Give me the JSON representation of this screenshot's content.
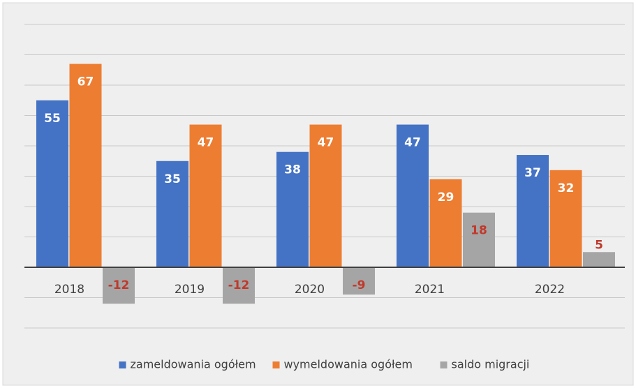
{
  "chart_data": {
    "type": "bar",
    "categories": [
      "2018",
      "2019",
      "2020",
      "2021",
      "2022"
    ],
    "series": [
      {
        "name": "zameldowania ogółem",
        "color": "#4472c4",
        "label_color": "#ffffff",
        "values": [
          55,
          35,
          38,
          47,
          37
        ]
      },
      {
        "name": "wymeldowania ogółem",
        "color": "#ed7d31",
        "label_color": "#ffffff",
        "values": [
          67,
          47,
          47,
          29,
          32
        ]
      },
      {
        "name": "saldo migracji",
        "color": "#a5a5a5",
        "label_color": "#c0392b",
        "values": [
          -12,
          -12,
          -9,
          18,
          5
        ]
      }
    ],
    "ylim": [
      -20,
      80
    ],
    "yticks": [
      -20,
      -10,
      0,
      10,
      20,
      30,
      40,
      50,
      60,
      70,
      80
    ],
    "grid": true,
    "legend": "bottom"
  }
}
